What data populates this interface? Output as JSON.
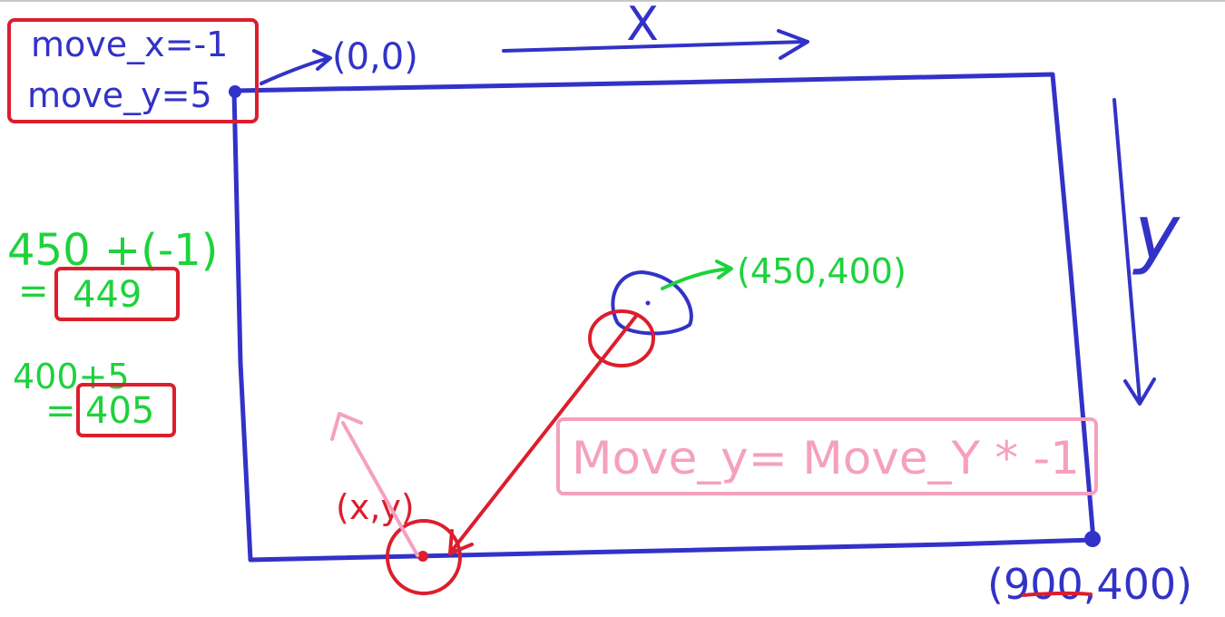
{
  "colors": {
    "blue": "#3232c8",
    "red": "#dc1e2d",
    "green": "#1ed23c",
    "pink": "#f5a0be",
    "topbar": "#c8c8c8"
  },
  "labels": {
    "axis_x": "X",
    "axis_y": "y",
    "origin": "(0,0)",
    "ball_center": "(450,400)",
    "corner": "(900,400)",
    "hit_point": "(x,y)"
  },
  "move_box": {
    "line1": "move_x=-1",
    "line2": "move_y=5"
  },
  "calc": {
    "x_expr": "450 +(-1)",
    "x_eq": "=",
    "x_result": "449",
    "y_expr": "400+5",
    "y_eq": "=",
    "y_result": "405"
  },
  "formula": "Move_y= Move_Y * -1"
}
